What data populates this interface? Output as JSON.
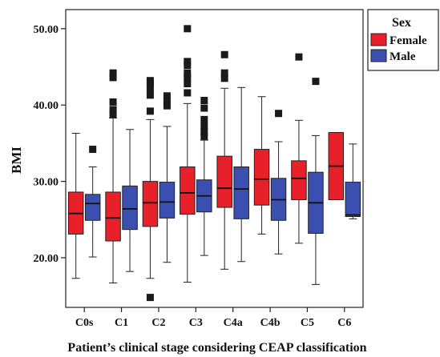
{
  "chart_data": {
    "type": "boxplot",
    "title": "",
    "xlabel": "Patient’s clinical stage considering CEAP classification",
    "ylabel": "BMI",
    "ylim": [
      13.5,
      52.5
    ],
    "yticks": [
      {
        "value": 20,
        "label": "20.00"
      },
      {
        "value": 30,
        "label": "30.00"
      },
      {
        "value": 40,
        "label": "40.00"
      },
      {
        "value": 50,
        "label": "50.00"
      }
    ],
    "grid": false,
    "legend": {
      "title": "Sex",
      "position": "right",
      "entries": [
        {
          "name": "Female",
          "color": "#e8202a"
        },
        {
          "name": "Male",
          "color": "#3a4fb0"
        }
      ]
    },
    "categories": [
      "C0s",
      "C1",
      "C2",
      "C3",
      "C4a",
      "C4b",
      "C5",
      "C6"
    ],
    "series": [
      {
        "name": "Female",
        "color": "#e8202a",
        "boxes": [
          {
            "min": 17.3,
            "q1": 23.1,
            "median": 25.8,
            "q3": 28.6,
            "max": 36.3,
            "outliers": []
          },
          {
            "min": 16.7,
            "q1": 22.2,
            "median": 25.2,
            "q3": 28.6,
            "max": 38.3,
            "outliers": [
              38.8,
              39.4,
              40.4,
              43.6,
              44.2
            ]
          },
          {
            "min": 17.3,
            "q1": 24.1,
            "median": 27.2,
            "q3": 30.0,
            "max": 38.1,
            "outliers": [
              14.8,
              39.2,
              41.3,
              42.2,
              42.8,
              43.2
            ]
          },
          {
            "min": 16.8,
            "q1": 25.7,
            "median": 28.5,
            "q3": 31.9,
            "max": 40.2,
            "outliers": [
              41.6,
              42.8,
              43.6,
              44.2,
              45.2,
              45.7,
              50.0
            ]
          },
          {
            "min": 18.5,
            "q1": 26.6,
            "median": 29.1,
            "q3": 33.3,
            "max": 42.2,
            "outliers": [
              43.5,
              44.2,
              46.6
            ]
          },
          {
            "min": 23.1,
            "q1": 26.9,
            "median": 30.3,
            "q3": 34.2,
            "max": 41.1,
            "outliers": []
          },
          {
            "min": 21.9,
            "q1": 27.6,
            "median": 30.4,
            "q3": 32.7,
            "max": 38.0,
            "outliers": [
              46.3
            ]
          },
          {
            "min": 27.6,
            "q1": 27.6,
            "median": 32.0,
            "q3": 36.4,
            "max": 36.4,
            "outliers": []
          }
        ]
      },
      {
        "name": "Male",
        "color": "#3a4fb0",
        "boxes": [
          {
            "min": 20.1,
            "q1": 24.9,
            "median": 27.1,
            "q3": 28.3,
            "max": 31.9,
            "outliers": [
              34.2
            ]
          },
          {
            "min": 18.2,
            "q1": 23.7,
            "median": 26.4,
            "q3": 29.4,
            "max": 36.8,
            "outliers": []
          },
          {
            "min": 19.4,
            "q1": 25.2,
            "median": 27.3,
            "q3": 29.9,
            "max": 37.2,
            "outliers": [
              39.9,
              40.6,
              41.2
            ]
          },
          {
            "min": 20.3,
            "q1": 26.0,
            "median": 28.1,
            "q3": 30.2,
            "max": 35.4,
            "outliers": [
              35.9,
              36.5,
              37.2,
              38.1,
              39.6,
              40.6
            ]
          },
          {
            "min": 19.5,
            "q1": 25.1,
            "median": 29.0,
            "q3": 31.9,
            "max": 42.3,
            "outliers": []
          },
          {
            "min": 20.5,
            "q1": 24.9,
            "median": 27.6,
            "q3": 30.4,
            "max": 35.2,
            "outliers": [
              38.9
            ]
          },
          {
            "min": 16.5,
            "q1": 23.2,
            "median": 27.2,
            "q3": 31.2,
            "max": 36.0,
            "outliers": [
              43.1
            ]
          },
          {
            "min": 25.1,
            "q1": 25.4,
            "median": 25.6,
            "q3": 29.9,
            "max": 34.9,
            "outliers": []
          }
        ]
      }
    ]
  }
}
